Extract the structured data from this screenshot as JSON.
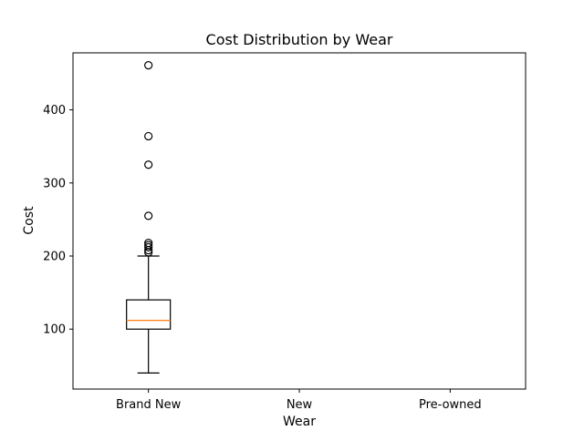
{
  "chart_data": {
    "type": "boxplot",
    "title": "Cost Distribution by Wear",
    "xlabel": "Wear",
    "ylabel": "Cost",
    "categories": [
      "Brand New",
      "New",
      "Pre-owned"
    ],
    "ylim": [
      18,
      478
    ],
    "yticks": [
      100,
      200,
      300,
      400
    ],
    "grid": false,
    "boxes": [
      {
        "category": "Brand New",
        "whisker_low": 40,
        "q1": 100,
        "median": 112,
        "q3": 140,
        "whisker_high": 200,
        "outliers": [
          205,
          208,
          212,
          215,
          218,
          255,
          325,
          364,
          461
        ]
      },
      {
        "category": "New",
        "empty": true
      },
      {
        "category": "Pre-owned",
        "empty": true
      }
    ],
    "colors": {
      "box": "#000000",
      "median": "#ff7f0e",
      "outlier": "#000000"
    }
  }
}
